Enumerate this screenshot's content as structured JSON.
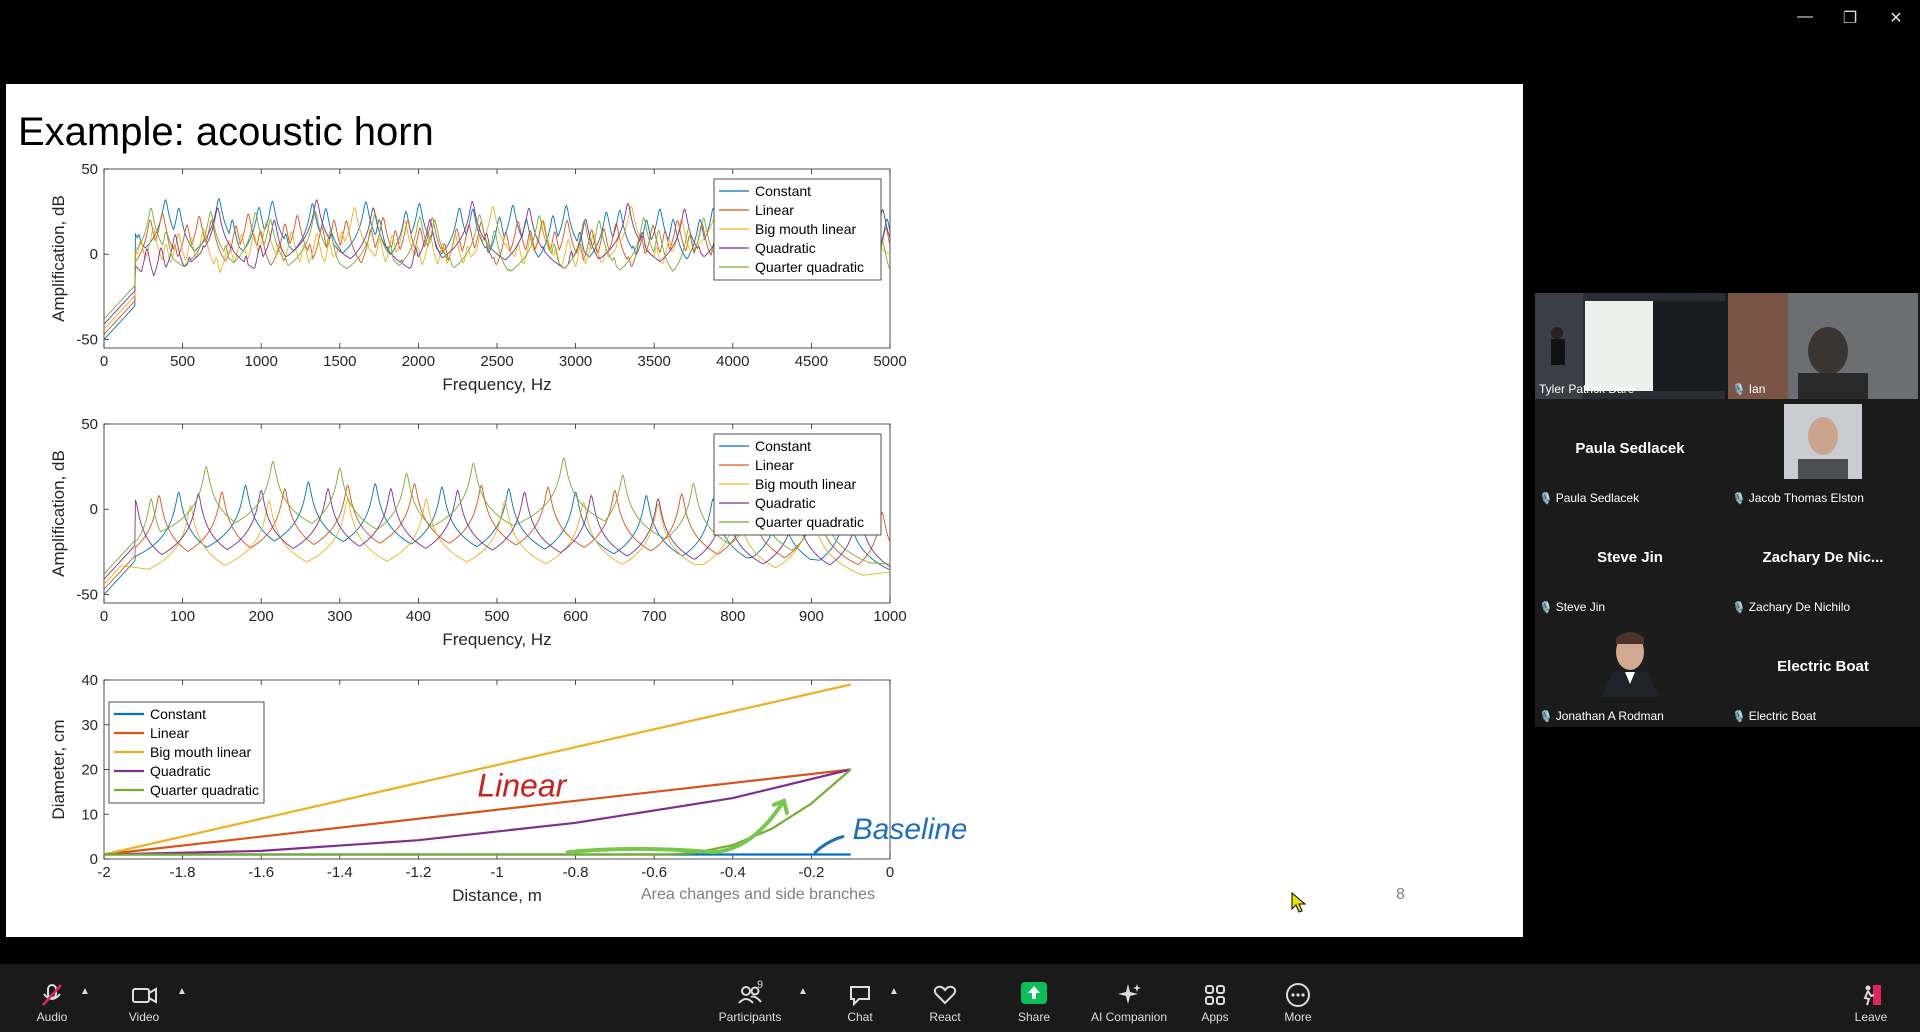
{
  "window": {
    "minimize": "—",
    "restore": "❐",
    "close": "✕"
  },
  "slide": {
    "title": "Example: acoustic horn",
    "footer": "Area changes and side branches",
    "page_number": "8",
    "annotations": {
      "red": "Linear",
      "blue": "Baseline"
    }
  },
  "chart_data": [
    {
      "type": "line",
      "xlabel": "Frequency, Hz",
      "ylabel": "Amplification, dB",
      "xlim": [
        0,
        5000
      ],
      "ylim": [
        -55,
        50
      ],
      "xticks": [
        0,
        500,
        1000,
        1500,
        2000,
        2500,
        3000,
        3500,
        4000,
        4500,
        5000
      ],
      "yticks": [
        -50,
        0,
        50
      ],
      "legend_position": "top-right",
      "series": [
        {
          "name": "Constant",
          "color": "#0072bd",
          "peak_spacing_hz": 85,
          "peak_db": 30,
          "trough_db": -42
        },
        {
          "name": "Linear",
          "color": "#d95319",
          "peak_spacing_hz": 78,
          "peak_db": 28,
          "trough_db": -38
        },
        {
          "name": "Big mouth linear",
          "color": "#edb120",
          "peak_spacing_hz": 80,
          "peak_db": 25,
          "trough_db": -48
        },
        {
          "name": "Quadratic",
          "color": "#7e2f8e",
          "peak_spacing_hz": 90,
          "peak_db": 22,
          "trough_db": -35
        },
        {
          "name": "Quarter quadratic",
          "color": "#77ac30",
          "peak_spacing_hz": 95,
          "peak_db": 20,
          "trough_db": -44
        }
      ]
    },
    {
      "type": "line",
      "xlabel": "Frequency, Hz",
      "ylabel": "Amplification, dB",
      "xlim": [
        0,
        1000
      ],
      "ylim": [
        -55,
        50
      ],
      "xticks": [
        0,
        100,
        200,
        300,
        400,
        500,
        600,
        700,
        800,
        900,
        1000
      ],
      "yticks": [
        -50,
        0,
        50
      ],
      "legend_position": "top-right",
      "series": [
        {
          "name": "Constant",
          "color": "#0072bd",
          "peaks": [
            [
              95,
              10
            ],
            [
              180,
              14
            ],
            [
              260,
              16
            ],
            [
              345,
              15
            ],
            [
              430,
              13
            ],
            [
              515,
              12
            ],
            [
              600,
              10
            ],
            [
              690,
              8
            ],
            [
              775,
              6
            ],
            [
              860,
              4
            ],
            [
              945,
              2
            ]
          ]
        },
        {
          "name": "Linear",
          "color": "#d95319",
          "peaks": [
            [
              70,
              8
            ],
            [
              150,
              10
            ],
            [
              230,
              12
            ],
            [
              310,
              14
            ],
            [
              395,
              15
            ],
            [
              480,
              14
            ],
            [
              565,
              13
            ],
            [
              650,
              11
            ],
            [
              735,
              9
            ],
            [
              820,
              7
            ],
            [
              905,
              5
            ],
            [
              990,
              -2
            ]
          ]
        },
        {
          "name": "Big mouth linear",
          "color": "#edb120",
          "peaks": [
            [
              110,
              2
            ],
            [
              210,
              5
            ],
            [
              310,
              6
            ],
            [
              410,
              6
            ],
            [
              510,
              5
            ],
            [
              610,
              4
            ],
            [
              705,
              3
            ],
            [
              805,
              2
            ],
            [
              900,
              1
            ]
          ]
        },
        {
          "name": "Quadratic",
          "color": "#7e2f8e",
          "peaks": [
            [
              40,
              5
            ],
            [
              120,
              9
            ],
            [
              200,
              11
            ],
            [
              285,
              12
            ],
            [
              365,
              12
            ],
            [
              450,
              11
            ],
            [
              535,
              10
            ],
            [
              620,
              8
            ],
            [
              705,
              6
            ],
            [
              790,
              4
            ],
            [
              880,
              2
            ],
            [
              960,
              0
            ]
          ]
        },
        {
          "name": "Quarter quadratic",
          "color": "#77ac30",
          "peaks": [
            [
              60,
              6
            ],
            [
              130,
              25
            ],
            [
              215,
              28
            ],
            [
              300,
              24
            ],
            [
              385,
              21
            ],
            [
              470,
              27
            ],
            [
              585,
              30
            ],
            [
              660,
              20
            ],
            [
              750,
              15
            ],
            [
              830,
              11
            ],
            [
              910,
              8
            ]
          ]
        }
      ]
    },
    {
      "type": "line",
      "xlabel": "Distance, m",
      "ylabel": "Diameter, cm",
      "xlim": [
        -2,
        0
      ],
      "ylim": [
        0,
        40
      ],
      "xticks": [
        -2,
        -1.8,
        -1.6,
        -1.4,
        -1.2,
        -1,
        -0.8,
        -0.6,
        -0.4,
        -0.2,
        0
      ],
      "yticks": [
        0,
        10,
        20,
        30,
        40
      ],
      "legend_position": "top-left",
      "series": [
        {
          "name": "Constant",
          "color": "#0072bd",
          "x": [
            -2,
            -0.1
          ],
          "y": [
            1,
            1
          ]
        },
        {
          "name": "Linear",
          "color": "#d95319",
          "x": [
            -2,
            -0.1
          ],
          "y": [
            1,
            20
          ]
        },
        {
          "name": "Big mouth linear",
          "color": "#edb120",
          "x": [
            -2,
            -0.1
          ],
          "y": [
            1,
            39
          ]
        },
        {
          "name": "Quadratic",
          "color": "#7e2f8e",
          "x": [
            -2,
            -1.6,
            -1.2,
            -0.8,
            -0.4,
            -0.1
          ],
          "y": [
            1,
            1.8,
            4.2,
            8.1,
            13.6,
            20
          ]
        },
        {
          "name": "Quarter quadratic",
          "color": "#77ac30",
          "x": [
            -2,
            -0.575,
            -0.5,
            -0.4,
            -0.3,
            -0.2,
            -0.1
          ],
          "y": [
            1,
            1,
            1.3,
            3.1,
            6.8,
            12.4,
            20
          ]
        }
      ]
    }
  ],
  "gallery": {
    "tiles": [
      {
        "name": "Tyler Patrick Dare",
        "muted": false,
        "video": true,
        "active": true
      },
      {
        "name": "Ian",
        "muted": true,
        "video": true
      },
      {
        "name": "Paula Sedlacek",
        "display": "Paula Sedlacek",
        "muted": true
      },
      {
        "name": "Jacob Thomas Elston",
        "muted": true,
        "photo": true
      },
      {
        "name": "Steve Jin",
        "display": "Steve Jin",
        "muted": true
      },
      {
        "name": "Zachary De Nichilo",
        "display": "Zachary De Nic...",
        "muted": true
      },
      {
        "name": "Jonathan A Rodman",
        "muted": true,
        "photo": true
      },
      {
        "name": "Electric Boat",
        "display": "Electric Boat",
        "muted": true
      }
    ]
  },
  "toolbar": {
    "audio": "Audio",
    "video": "Video",
    "participants": "Participants",
    "participants_count": "9",
    "chat": "Chat",
    "react": "React",
    "share": "Share",
    "ai_companion": "AI Companion",
    "apps": "Apps",
    "more": "More",
    "leave": "Leave"
  }
}
